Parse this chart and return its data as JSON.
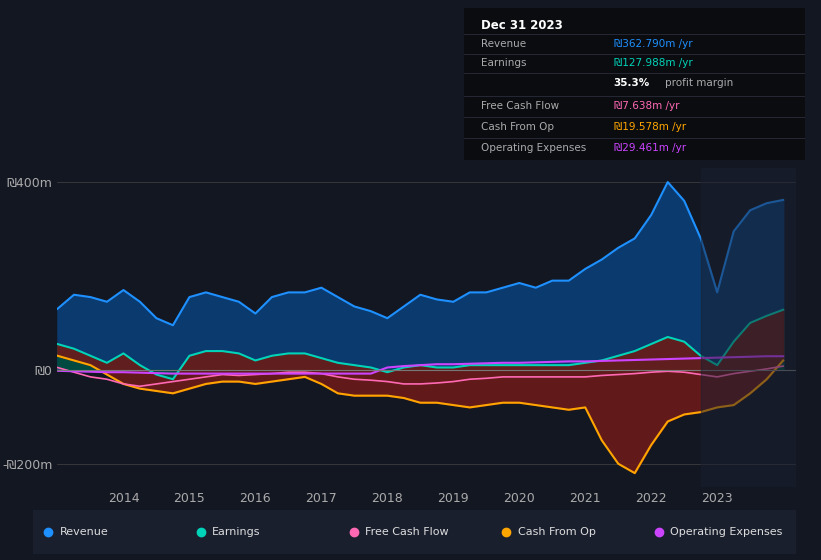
{
  "bg_color": "#131722",
  "plot_bg": "#131722",
  "years": [
    2013.0,
    2013.25,
    2013.5,
    2013.75,
    2014.0,
    2014.25,
    2014.5,
    2014.75,
    2015.0,
    2015.25,
    2015.5,
    2015.75,
    2016.0,
    2016.25,
    2016.5,
    2016.75,
    2017.0,
    2017.25,
    2017.5,
    2017.75,
    2018.0,
    2018.25,
    2018.5,
    2018.75,
    2019.0,
    2019.25,
    2019.5,
    2019.75,
    2020.0,
    2020.25,
    2020.5,
    2020.75,
    2021.0,
    2021.25,
    2021.5,
    2021.75,
    2022.0,
    2022.25,
    2022.5,
    2022.75,
    2023.0,
    2023.25,
    2023.5,
    2023.75,
    2024.0
  ],
  "revenue": [
    130,
    160,
    155,
    145,
    170,
    145,
    110,
    95,
    155,
    165,
    155,
    145,
    120,
    155,
    165,
    165,
    175,
    155,
    135,
    125,
    110,
    135,
    160,
    150,
    145,
    165,
    165,
    175,
    185,
    175,
    190,
    190,
    215,
    235,
    260,
    280,
    330,
    400,
    360,
    280,
    165,
    295,
    340,
    355,
    362
  ],
  "earnings": [
    55,
    45,
    30,
    15,
    35,
    10,
    -10,
    -20,
    30,
    40,
    40,
    35,
    20,
    30,
    35,
    35,
    25,
    15,
    10,
    5,
    -5,
    5,
    10,
    5,
    5,
    10,
    10,
    10,
    10,
    10,
    10,
    10,
    15,
    20,
    30,
    40,
    55,
    70,
    60,
    30,
    10,
    60,
    100,
    115,
    128
  ],
  "free_cash_flow": [
    5,
    -5,
    -15,
    -20,
    -30,
    -35,
    -30,
    -25,
    -20,
    -15,
    -10,
    -12,
    -10,
    -8,
    -5,
    -5,
    -8,
    -15,
    -20,
    -22,
    -25,
    -30,
    -30,
    -28,
    -25,
    -20,
    -18,
    -15,
    -15,
    -15,
    -15,
    -15,
    -15,
    -12,
    -10,
    -8,
    -5,
    -3,
    -5,
    -10,
    -15,
    -8,
    -3,
    2,
    8
  ],
  "cash_from_op": [
    30,
    20,
    10,
    -10,
    -30,
    -40,
    -45,
    -50,
    -40,
    -30,
    -25,
    -25,
    -30,
    -25,
    -20,
    -15,
    -30,
    -50,
    -55,
    -55,
    -55,
    -60,
    -70,
    -70,
    -75,
    -80,
    -75,
    -70,
    -70,
    -75,
    -80,
    -85,
    -80,
    -150,
    -200,
    -220,
    -160,
    -110,
    -95,
    -90,
    -80,
    -75,
    -50,
    -20,
    20
  ],
  "operating_expenses": [
    -2,
    -3,
    -4,
    -5,
    -5,
    -6,
    -7,
    -8,
    -8,
    -8,
    -8,
    -8,
    -8,
    -8,
    -8,
    -8,
    -8,
    -8,
    -8,
    -8,
    5,
    8,
    10,
    12,
    12,
    13,
    14,
    15,
    15,
    16,
    17,
    18,
    18,
    19,
    20,
    21,
    22,
    23,
    24,
    25,
    26,
    27,
    28,
    29,
    29
  ],
  "revenue_color": "#1e90ff",
  "revenue_fill": "#0a3a6e",
  "earnings_color": "#00d4b8",
  "earnings_fill": "#004a42",
  "free_cash_flow_color": "#ff69b4",
  "cash_from_op_color": "#ffa500",
  "operating_expenses_color": "#cc44ff",
  "ylim": [
    -250,
    430
  ],
  "xlim": [
    2013.0,
    2024.2
  ],
  "yticks": [
    -200,
    0,
    400
  ],
  "ytick_labels": [
    "-₪200m",
    "₪0",
    "₪400m"
  ],
  "xticks": [
    2014,
    2015,
    2016,
    2017,
    2018,
    2019,
    2020,
    2021,
    2022,
    2023
  ],
  "info_box": {
    "title": "Dec 31 2023",
    "rows": [
      {
        "label": "Revenue",
        "value": "₪362.790m /yr",
        "value_color": "#1e90ff"
      },
      {
        "label": "Earnings",
        "value": "₪127.988m /yr",
        "value_color": "#00d4b8"
      },
      {
        "label": "",
        "value": "35.3% profit margin",
        "value_color": "#ffffff"
      },
      {
        "label": "Free Cash Flow",
        "value": "₪7.638m /yr",
        "value_color": "#ff69b4"
      },
      {
        "label": "Cash From Op",
        "value": "₪19.578m /yr",
        "value_color": "#ffa500"
      },
      {
        "label": "Operating Expenses",
        "value": "₪29.461m /yr",
        "value_color": "#cc44ff"
      }
    ]
  },
  "legend": [
    {
      "label": "Revenue",
      "color": "#1e90ff"
    },
    {
      "label": "Earnings",
      "color": "#00d4b8"
    },
    {
      "label": "Free Cash Flow",
      "color": "#ff69b4"
    },
    {
      "label": "Cash From Op",
      "color": "#ffa500"
    },
    {
      "label": "Operating Expenses",
      "color": "#cc44ff"
    }
  ]
}
